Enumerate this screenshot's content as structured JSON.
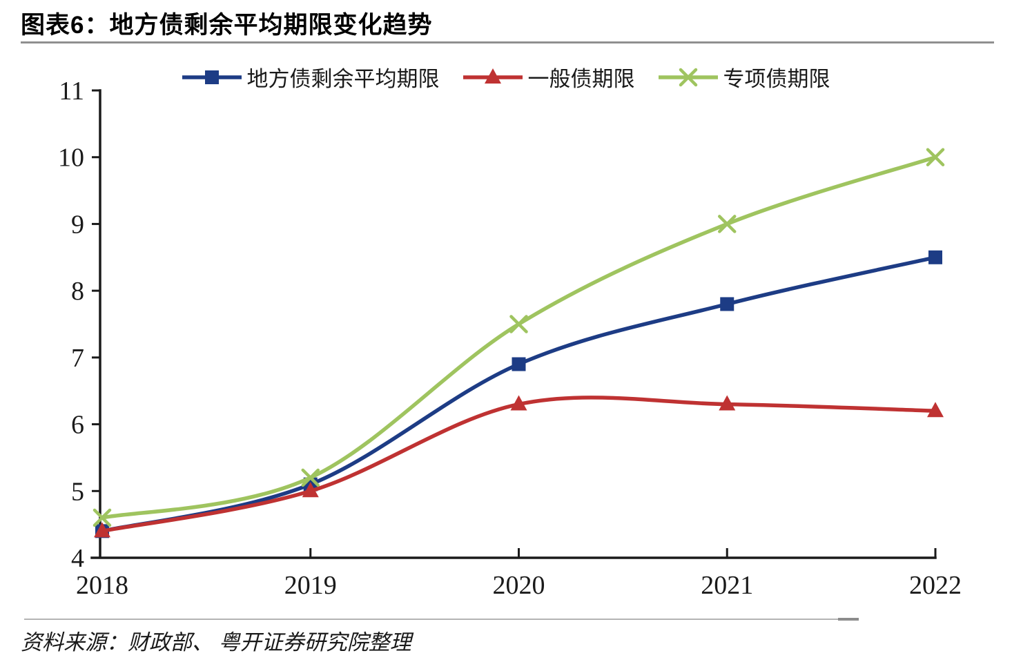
{
  "page": {
    "title": "图表6：地方债剩余平均期限变化趋势",
    "source": "资料来源：财政部、 粤开证券研究院整理"
  },
  "chart_data": {
    "type": "line",
    "title": "地方债剩余平均期限变化趋势",
    "categories": [
      "2018",
      "2019",
      "2020",
      "2021",
      "2022"
    ],
    "series": [
      {
        "name": "地方债剩余平均期限",
        "values": [
          4.4,
          5.1,
          6.9,
          7.8,
          8.5
        ],
        "color": "#1d3c85",
        "marker": "square"
      },
      {
        "name": "一般债期限",
        "values": [
          4.4,
          5.0,
          6.3,
          6.3,
          6.2
        ],
        "color": "#bf3232",
        "marker": "triangle"
      },
      {
        "name": "专项债期限",
        "values": [
          4.6,
          5.2,
          7.5,
          9.0,
          10.0
        ],
        "color": "#9fc45f",
        "marker": "x"
      }
    ],
    "xlabel": "",
    "ylabel": "",
    "ylim": [
      4,
      11
    ],
    "y_ticks": [
      4,
      5,
      6,
      7,
      8,
      9,
      10,
      11
    ],
    "grid": false,
    "legend_position": "top",
    "line_style": "smooth",
    "axis_color": "#1a1a1a"
  }
}
